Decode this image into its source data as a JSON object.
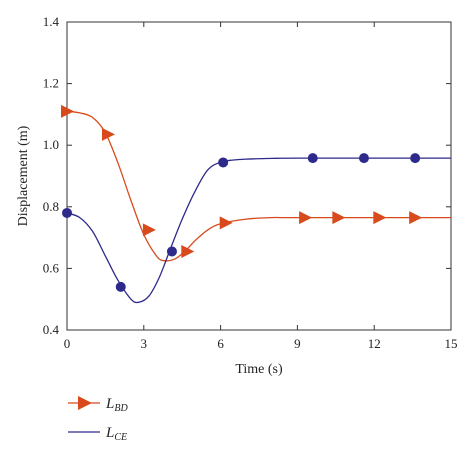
{
  "chart_data": {
    "type": "line",
    "title": "",
    "xlabel": "Time (s)",
    "ylabel": "Displacement (m)",
    "xlim": [
      0,
      15
    ],
    "ylim": [
      0.4,
      1.4
    ],
    "xticks": [
      "0",
      "3",
      "6",
      "9",
      "12",
      "15"
    ],
    "yticks": [
      "0.4",
      "0.6",
      "0.8",
      "1.0",
      "1.2",
      "1.4"
    ],
    "grid": false,
    "legend_position": "bottom-left",
    "series": [
      {
        "name_main": "L",
        "name_sub": "BD",
        "color": "#d84a1b",
        "marker": "triangle-right",
        "curve": [
          [
            0,
            1.11
          ],
          [
            0.5,
            1.105
          ],
          [
            1,
            1.09
          ],
          [
            1.5,
            1.04
          ],
          [
            2,
            0.94
          ],
          [
            2.5,
            0.82
          ],
          [
            3,
            0.71
          ],
          [
            3.5,
            0.64
          ],
          [
            3.8,
            0.625
          ],
          [
            4.2,
            0.63
          ],
          [
            4.6,
            0.655
          ],
          [
            5,
            0.69
          ],
          [
            5.5,
            0.725
          ],
          [
            6,
            0.745
          ],
          [
            7,
            0.76
          ],
          [
            8,
            0.765
          ],
          [
            9,
            0.765
          ],
          [
            15,
            0.765
          ]
        ],
        "markers": [
          [
            0,
            1.11
          ],
          [
            1.6,
            1.035
          ],
          [
            3.2,
            0.725
          ],
          [
            4.7,
            0.655
          ],
          [
            6.2,
            0.748
          ],
          [
            9.3,
            0.765
          ],
          [
            10.6,
            0.765
          ],
          [
            12.2,
            0.765
          ],
          [
            13.6,
            0.765
          ]
        ]
      },
      {
        "name_main": "L",
        "name_sub": "CE",
        "color": "#2e2a8c",
        "marker": "circle",
        "curve": [
          [
            0,
            0.78
          ],
          [
            0.5,
            0.765
          ],
          [
            1,
            0.72
          ],
          [
            1.5,
            0.64
          ],
          [
            2,
            0.56
          ],
          [
            2.5,
            0.5
          ],
          [
            2.8,
            0.49
          ],
          [
            3.2,
            0.51
          ],
          [
            3.6,
            0.57
          ],
          [
            4,
            0.655
          ],
          [
            4.5,
            0.76
          ],
          [
            5,
            0.85
          ],
          [
            5.5,
            0.92
          ],
          [
            6,
            0.945
          ],
          [
            6.5,
            0.952
          ],
          [
            7,
            0.955
          ],
          [
            8,
            0.957
          ],
          [
            9,
            0.958
          ],
          [
            15,
            0.958
          ]
        ],
        "markers": [
          [
            0,
            0.78
          ],
          [
            2.1,
            0.54
          ],
          [
            4.1,
            0.655
          ],
          [
            6.1,
            0.944
          ],
          [
            9.6,
            0.958
          ],
          [
            11.6,
            0.958
          ],
          [
            13.6,
            0.958
          ]
        ]
      }
    ]
  }
}
